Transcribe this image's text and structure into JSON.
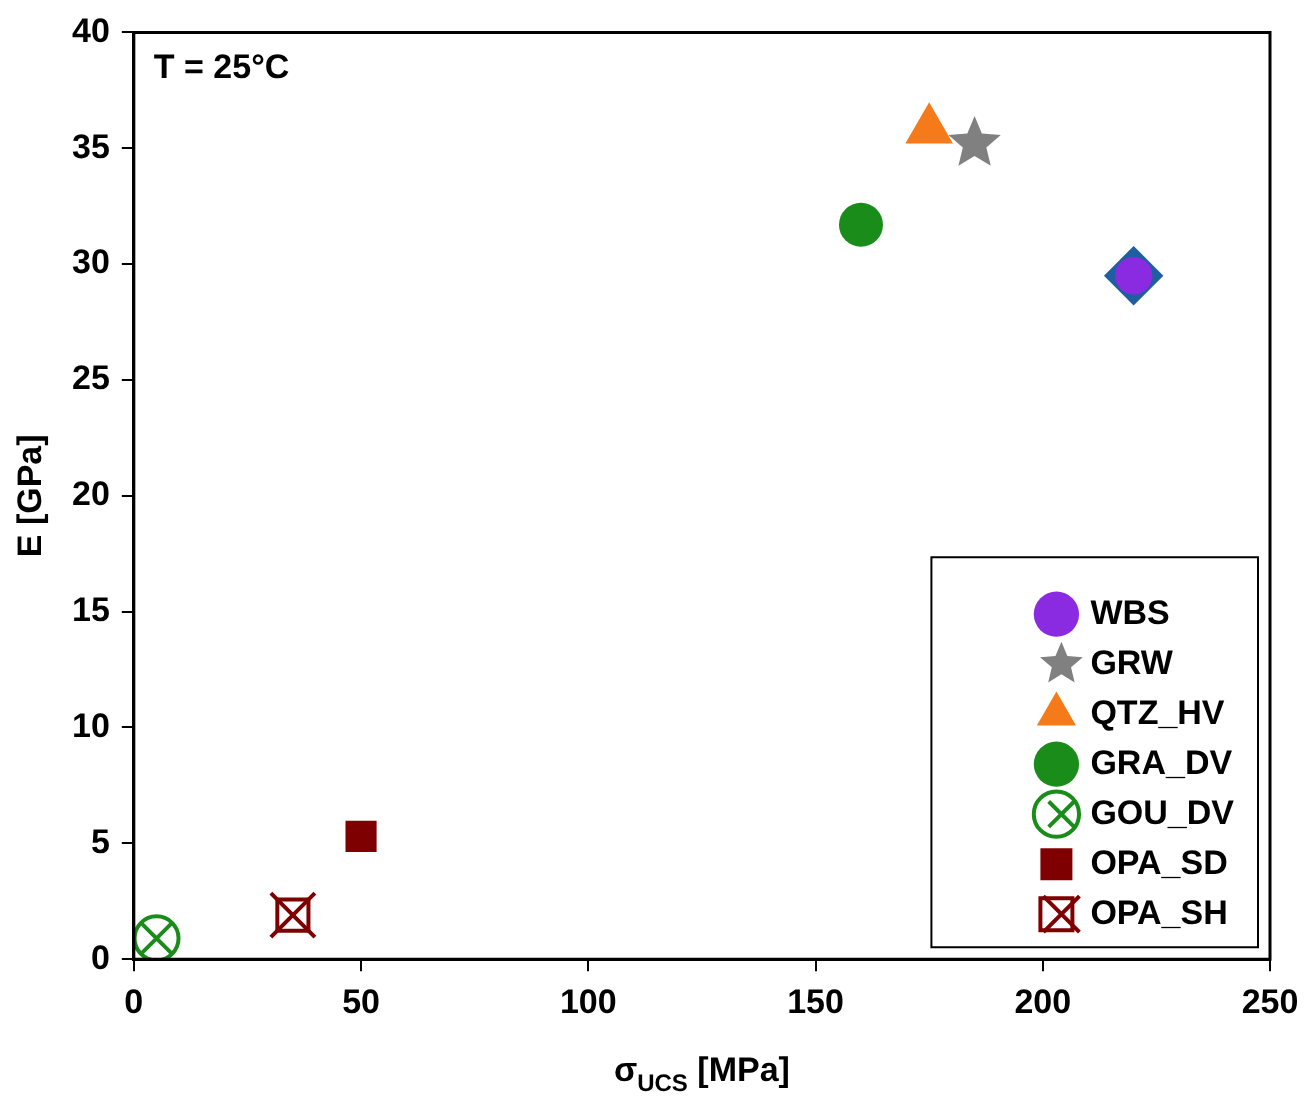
{
  "chart_data": {
    "type": "scatter",
    "xlabel": "σ$_{UCS}$ [MPa]",
    "ylabel": "E [GPa]",
    "annotations": [
      "T = 25°C"
    ],
    "xlim": [
      0,
      250
    ],
    "xticks": [
      0,
      50,
      100,
      150,
      200,
      250
    ],
    "ylim": [
      0,
      40
    ],
    "yticks": [
      0,
      5,
      10,
      15,
      20,
      25,
      30,
      35,
      40
    ],
    "grid": false,
    "legend": "bottom right",
    "series": [
      {
        "color": "#1f5f9f",
        "marker": "diamond",
        "x": [
          220
        ],
        "values": [
          29.5
        ]
      },
      {
        "name": "WBS",
        "color": "#8a2be2",
        "marker": "circle",
        "x": [
          220
        ],
        "values": [
          29.5
        ]
      },
      {
        "name": "GRW",
        "color": "#808080",
        "marker": "star",
        "x": [
          185
        ],
        "values": [
          35.2
        ]
      },
      {
        "name": "QTZ_HV",
        "color": "#f57a1a",
        "marker": "triangle",
        "x": [
          175
        ],
        "values": [
          35.8
        ]
      },
      {
        "name": "GRA_DV",
        "color": "#1a8c1a",
        "marker": "circle",
        "x": [
          160
        ],
        "values": [
          31.7
        ]
      },
      {
        "name": "GOU_DV",
        "color": "#1a8c1a",
        "marker": "circle-x",
        "x": [
          5
        ],
        "values": [
          0.9
        ]
      },
      {
        "name": "OPA_SD",
        "color": "#7f0000",
        "marker": "square",
        "x": [
          50
        ],
        "values": [
          5.3
        ]
      },
      {
        "name": "OPA_SH",
        "color": "#7f0000",
        "marker": "square-x",
        "x": [
          35
        ],
        "values": [
          1.9
        ]
      }
    ]
  }
}
